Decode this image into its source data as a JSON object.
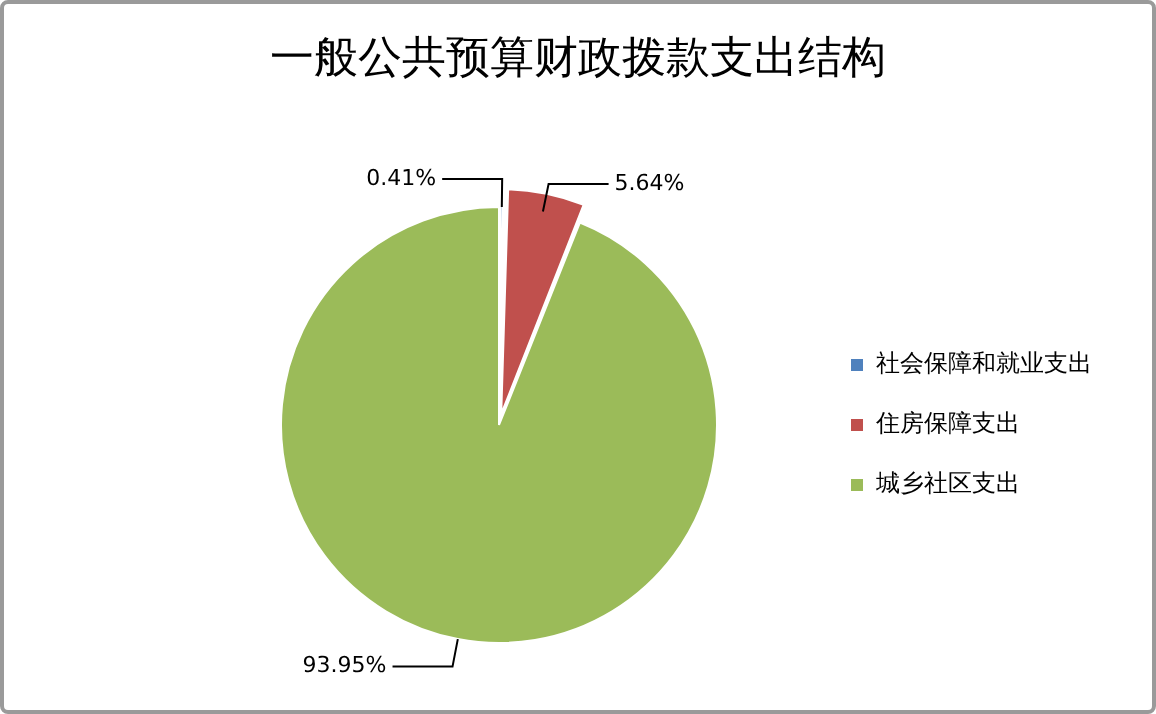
{
  "chart_data": {
    "type": "pie",
    "title": "一般公共预算财政拨款支出结构",
    "categories": [
      "社会保障和就业支出",
      "住房保障支出",
      "城乡社区支出"
    ],
    "values": [
      0.41,
      5.64,
      93.95
    ],
    "colors": [
      "#4f81bd",
      "#c0504d",
      "#9bbb59"
    ],
    "value_labels": [
      "0.41%",
      "5.64%",
      "93.95%"
    ],
    "legend": "right"
  }
}
